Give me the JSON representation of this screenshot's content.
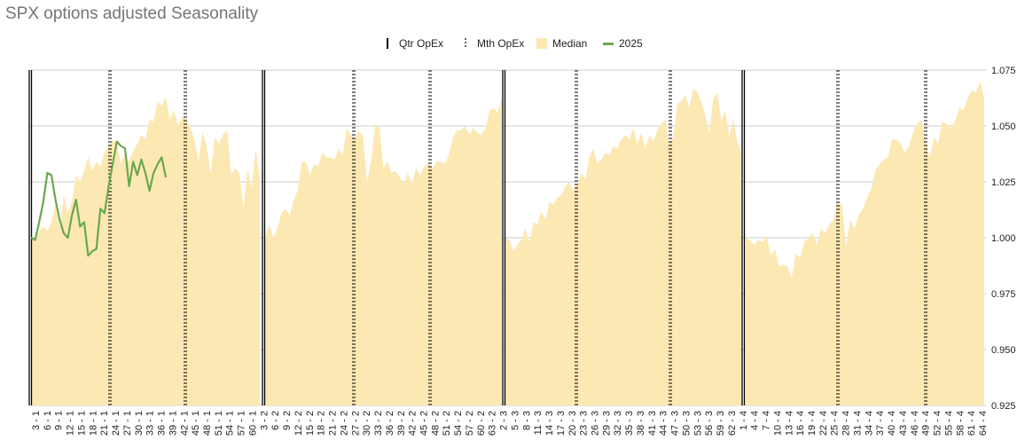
{
  "chart_data": {
    "type": "area",
    "title": "SPX options adjusted Seasonality",
    "legend": {
      "placement": "top",
      "entries": [
        "Qtr OpEx",
        "Mth OpEx",
        "Median",
        "2025"
      ]
    },
    "ylim": [
      0.925,
      1.075
    ],
    "y_ticks": [
      "0.925",
      "0.950",
      "0.975",
      "1.000",
      "1.025",
      "1.050",
      "1.075"
    ],
    "y_axis_side": "right",
    "grid": true,
    "colors": {
      "median": "#fce8b2",
      "2025": "#6aa84f",
      "grid": "#cccccc"
    },
    "x_ticks": [
      "3 - 1",
      "6 - 1",
      "9 - 1",
      "12 - 1",
      "15 - 1",
      "18 - 1",
      "21 - 1",
      "24 - 1",
      "27 - 1",
      "30 - 1",
      "33 - 1",
      "36 - 1",
      "39 - 1",
      "42 - 1",
      "45 - 1",
      "48 - 1",
      "51 - 1",
      "54 - 1",
      "57 - 1",
      "60 - 1",
      "3 - 2",
      "6 - 2",
      "9 - 2",
      "12 - 2",
      "15 - 2",
      "18 - 2",
      "21 - 2",
      "24 - 2",
      "27 - 2",
      "30 - 2",
      "33 - 2",
      "36 - 2",
      "39 - 2",
      "42 - 2",
      "45 - 2",
      "48 - 2",
      "51 - 2",
      "54 - 2",
      "57 - 2",
      "60 - 2",
      "63 - 2",
      "2 - 3",
      "5 - 3",
      "8 - 3",
      "11 - 3",
      "14 - 3",
      "17 - 3",
      "20 - 3",
      "23 - 3",
      "26 - 3",
      "29 - 3",
      "32 - 3",
      "35 - 3",
      "38 - 3",
      "41 - 3",
      "44 - 3",
      "47 - 3",
      "50 - 3",
      "53 - 3",
      "56 - 3",
      "59 - 3",
      "62 - 3",
      "1 - 4",
      "4 - 4",
      "7 - 4",
      "10 - 4",
      "13 - 4",
      "16 - 4",
      "19 - 4",
      "22 - 4",
      "25 - 4",
      "28 - 4",
      "31 - 4",
      "34 - 4",
      "37 - 4",
      "40 - 4",
      "43 - 4",
      "46 - 4",
      "49 - 4",
      "52 - 4",
      "55 - 4",
      "58 - 4",
      "61 - 4",
      "64 - 4"
    ],
    "segments": [
      {
        "label": "1",
        "median": [
          1.0,
          0.999,
          1.003,
          1.005,
          1.003,
          1.007,
          1.015,
          1.004,
          1.019,
          1.011,
          1.016,
          1.028,
          1.025,
          1.03,
          1.036,
          1.03,
          1.034,
          1.032,
          1.038,
          1.041,
          1.044,
          1.042,
          1.033,
          1.037,
          1.034,
          1.039,
          1.042,
          1.046,
          1.044,
          1.053,
          1.052,
          1.061,
          1.059,
          1.063,
          1.053,
          1.057,
          1.05,
          1.054,
          1.053,
          1.049,
          1.044,
          1.034,
          1.047,
          1.041,
          1.029,
          1.045,
          1.042,
          1.046,
          1.048,
          1.028,
          1.031,
          1.029,
          1.013,
          1.031,
          1.022,
          1.04,
          1.026
        ]
      },
      {
        "label": "2",
        "median": [
          1.0,
          1.006,
          1.0,
          1.004,
          1.011,
          1.013,
          1.01,
          1.017,
          1.021,
          1.034,
          1.034,
          1.028,
          1.033,
          1.032,
          1.038,
          1.036,
          1.036,
          1.035,
          1.04,
          1.037,
          1.049,
          1.046,
          1.044,
          1.048,
          1.045,
          1.025,
          1.035,
          1.051,
          1.049,
          1.031,
          1.034,
          1.029,
          1.03,
          1.027,
          1.024,
          1.029,
          1.024,
          1.031,
          1.028,
          1.032,
          1.033,
          1.031,
          1.034,
          1.034,
          1.033,
          1.037,
          1.045,
          1.048,
          1.048,
          1.05,
          1.046,
          1.049,
          1.047,
          1.046,
          1.049,
          1.057,
          1.058,
          1.056,
          1.063
        ]
      },
      {
        "label": "3",
        "median": [
          1.0,
          0.999,
          0.994,
          0.997,
          0.999,
          1.004,
          0.998,
          1.007,
          1.006,
          1.012,
          1.008,
          1.016,
          1.015,
          1.018,
          1.019,
          1.023,
          1.025,
          1.021,
          1.024,
          1.029,
          1.026,
          1.036,
          1.04,
          1.033,
          1.035,
          1.038,
          1.037,
          1.041,
          1.04,
          1.044,
          1.046,
          1.044,
          1.049,
          1.042,
          1.047,
          1.04,
          1.046,
          1.043,
          1.048,
          1.051,
          1.053,
          1.042,
          1.045,
          1.06,
          1.061,
          1.064,
          1.058,
          1.067,
          1.065,
          1.061,
          1.055,
          1.047,
          1.062,
          1.065,
          1.052,
          1.057,
          1.045,
          1.053,
          1.043,
          1.038
        ]
      },
      {
        "label": "4",
        "median": [
          1.0,
          0.999,
          0.997,
          0.999,
          0.998,
          1.001,
          0.992,
          0.995,
          0.987,
          0.988,
          0.987,
          0.982,
          0.993,
          0.991,
          0.998,
          1.0,
          1.002,
          0.997,
          1.004,
          1.002,
          1.006,
          1.008,
          1.016,
          1.015,
          0.996,
          1.008,
          1.004,
          1.01,
          1.013,
          1.018,
          1.022,
          1.03,
          1.033,
          1.035,
          1.036,
          1.044,
          1.044,
          1.042,
          1.038,
          1.041,
          1.047,
          1.051,
          1.053,
          1.043,
          1.036,
          1.045,
          1.042,
          1.052,
          1.051,
          1.049,
          1.052,
          1.058,
          1.057,
          1.062,
          1.066,
          1.065,
          1.07,
          1.062
        ]
      }
    ],
    "series_2025": [
      1.0,
      0.999,
      1.007,
      1.016,
      1.029,
      1.028,
      1.017,
      1.008,
      1.002,
      1.0,
      1.01,
      1.017,
      1.005,
      1.007,
      0.992,
      0.994,
      0.995,
      1.013,
      1.011,
      1.023,
      1.033,
      1.043,
      1.041,
      1.04,
      1.023,
      1.034,
      1.028,
      1.035,
      1.029,
      1.021,
      1.029,
      1.033,
      1.036,
      1.027
    ]
  }
}
